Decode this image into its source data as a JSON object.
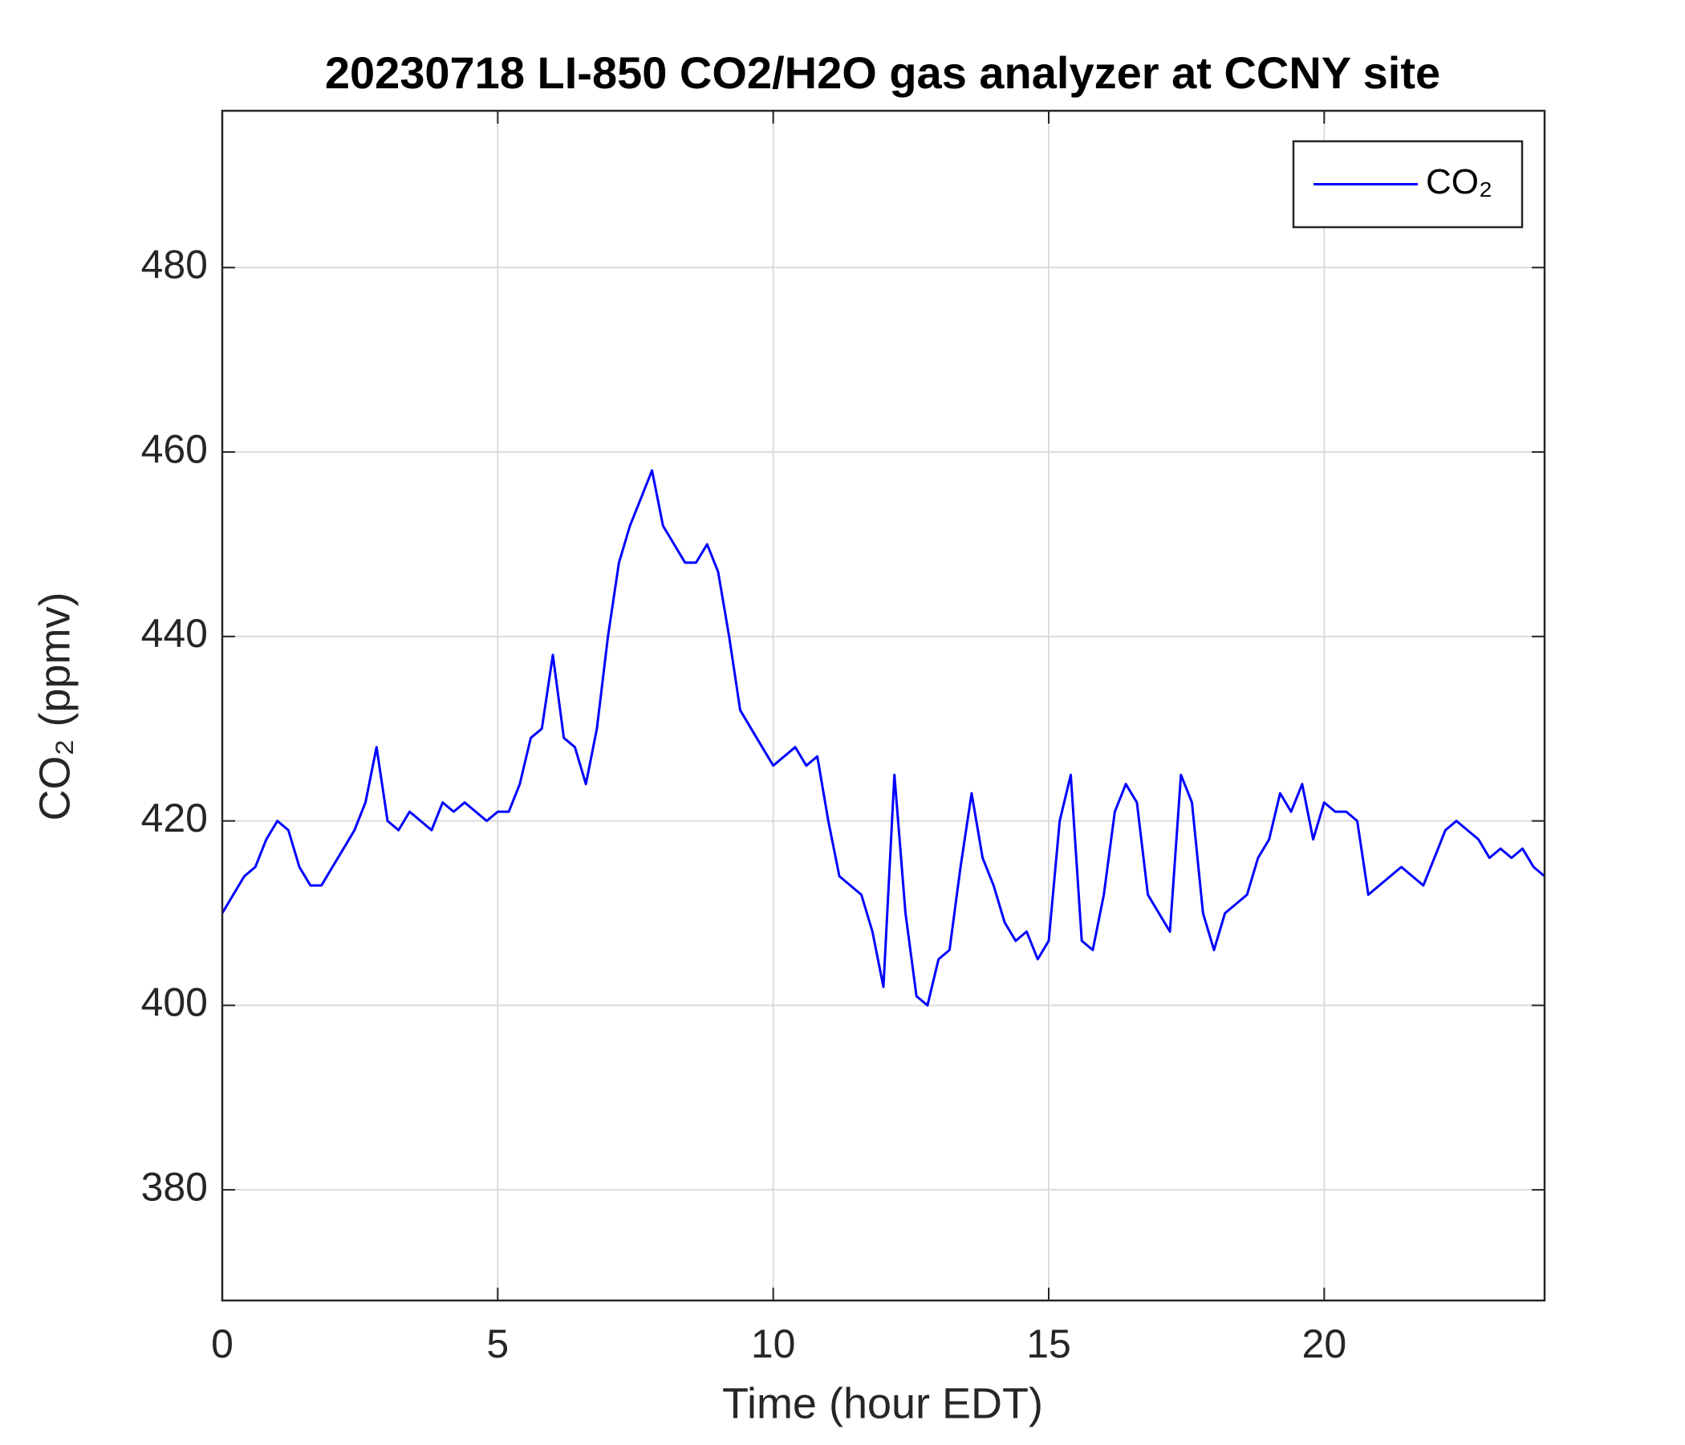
{
  "chart_data": {
    "type": "line",
    "title": "20230718 LI-850 CO2/H2O gas analyzer at CCNY site",
    "x_label": "Time (hour EDT)",
    "y_label": "CO₂ (ppmv)",
    "xlim": [
      0,
      24
    ],
    "xticks": [
      0,
      5,
      10,
      15,
      20
    ],
    "ylim": [
      368,
      497
    ],
    "yticks": [
      380,
      400,
      420,
      440,
      460,
      480
    ],
    "grid": true,
    "legend": "upper right",
    "x": [
      0,
      0.2,
      0.4,
      0.6,
      0.8,
      1,
      1.2,
      1.4,
      1.6,
      1.8,
      2,
      2.2,
      2.4,
      2.6,
      2.8,
      3,
      3.2,
      3.4,
      3.6,
      3.8,
      4,
      4.2,
      4.4,
      4.6,
      4.8,
      5,
      5.2,
      5.4,
      5.6,
      5.8,
      6,
      6.2,
      6.4,
      6.6,
      6.8,
      7,
      7.2,
      7.4,
      7.6,
      7.8,
      8,
      8.2,
      8.4,
      8.6,
      8.8,
      9,
      9.2,
      9.4,
      9.6,
      9.8,
      10,
      10.2,
      10.4,
      10.6,
      10.8,
      11,
      11.2,
      11.4,
      11.6,
      11.8,
      12,
      12.2,
      12.4,
      12.6,
      12.8,
      13,
      13.2,
      13.4,
      13.6,
      13.8,
      14,
      14.2,
      14.4,
      14.6,
      14.8,
      15,
      15.2,
      15.4,
      15.6,
      15.8,
      16,
      16.2,
      16.4,
      16.6,
      16.8,
      17,
      17.2,
      17.4,
      17.6,
      17.8,
      18,
      18.2,
      18.4,
      18.6,
      18.8,
      19,
      19.2,
      19.4,
      19.6,
      19.8,
      20,
      20.2,
      20.4,
      20.6,
      20.8,
      21,
      21.2,
      21.4,
      21.6,
      21.8,
      22,
      22.2,
      22.4,
      22.6,
      22.8,
      23,
      23.2,
      23.4,
      23.6,
      23.8,
      24
    ],
    "series": [
      {
        "name": "CO₂",
        "color": "#0000ff",
        "values": [
          410,
          412,
          414,
          415,
          418,
          420,
          419,
          415,
          413,
          413,
          415,
          417,
          419,
          422,
          428,
          420,
          419,
          421,
          420,
          419,
          422,
          421,
          422,
          421,
          420,
          421,
          421,
          424,
          429,
          430,
          438,
          429,
          428,
          424,
          430,
          440,
          448,
          452,
          455,
          458,
          452,
          450,
          448,
          448,
          450,
          447,
          440,
          432,
          430,
          428,
          426,
          427,
          428,
          426,
          427,
          420,
          414,
          413,
          412,
          408,
          402,
          425,
          410,
          401,
          400,
          405,
          406,
          415,
          423,
          416,
          413,
          409,
          407,
          408,
          405,
          407,
          420,
          425,
          407,
          406,
          412,
          421,
          424,
          422,
          412,
          410,
          408,
          425,
          422,
          410,
          406,
          410,
          411,
          412,
          416,
          418,
          423,
          421,
          424,
          418,
          422,
          421,
          421,
          420,
          412,
          413,
          414,
          415,
          414,
          413,
          416,
          419,
          420,
          419,
          418,
          416,
          417,
          416,
          417,
          415,
          414
        ]
      }
    ]
  }
}
